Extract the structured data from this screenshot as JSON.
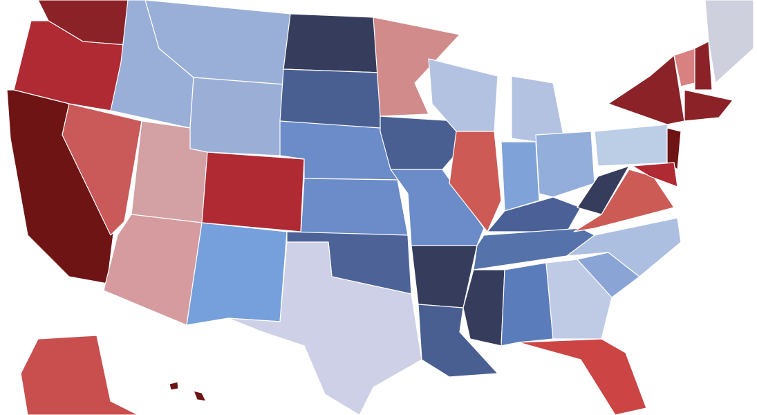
{
  "map": {
    "fills": [
      "#8b2228",
      "#b02a33",
      "#6e1414",
      "#c95a59",
      "#9aafd7",
      "#9bafd6",
      "#d3a0a3",
      "#d59b9f",
      "#75a0db",
      "#363d5c",
      "#4a5f91",
      "#6b8cc8",
      "#4d6398",
      "#cdd0e6",
      "#d18b8b",
      "#b3c2e1",
      "#ce5a55",
      "#7fa2d9",
      "#93aedb",
      "#4a6096",
      "#5572ab",
      "#5b7cbb",
      "#bfcbe5",
      "#cc4444",
      "#8aa4d6",
      "#adbfe0",
      "#cc5b56",
      "#bccde6",
      "#cfd0dd",
      "#c94e4e",
      "#d98080"
    ]
  }
}
